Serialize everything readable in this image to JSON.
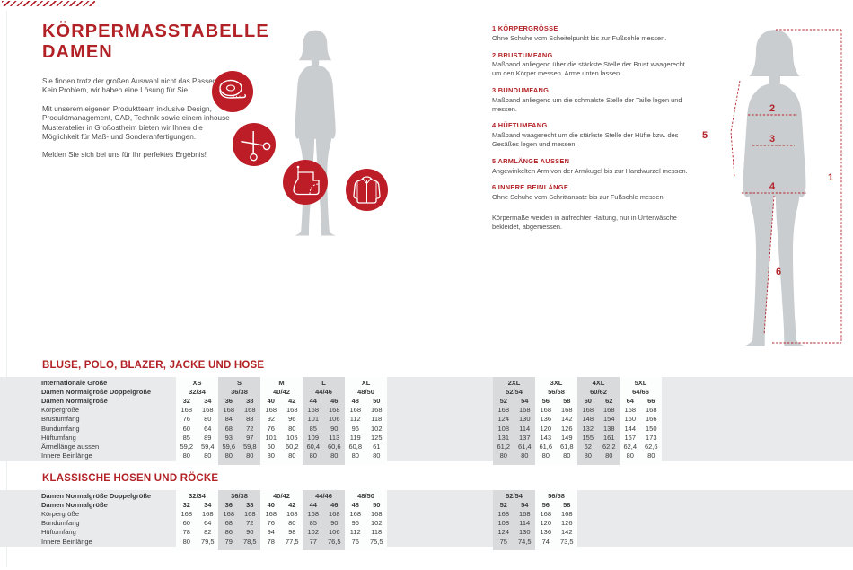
{
  "colors": {
    "accent_red": "#b22126",
    "badge_red": "#bc1d26",
    "silhouette_gray": "#c9cdd0",
    "table_band_gray": "#e9eaec",
    "table_shaded_gray": "#d8dadc"
  },
  "header": {
    "title_line1": "KÖRPERMASSTABELLE",
    "title_line2": "DAMEN"
  },
  "intro": {
    "paragraphs": [
      "Sie finden trotz der großen Auswahl nicht das Passende? Kein Problem, wir haben eine Lösung für Sie.",
      "Mit unserem eigenen Produktteam inklusive Design, Produktmanagement, CAD, Technik sowie einem inhouse Musteratelier in Großostheim bieten wir Ihnen die Möglichkeit für Maß- und Sonderanfertigungen.",
      "Melden Sie sich bei uns für Ihr perfektes Ergebnis!"
    ]
  },
  "icons": [
    "tape-measure",
    "scissors",
    "sewing-pattern",
    "jacket"
  ],
  "measure_guide": {
    "items": [
      {
        "title": "1 KÖRPERGRÖSSE",
        "text": "Ohne Schuhe vom Scheitelpunkt bis zur Fußsohle messen."
      },
      {
        "title": "2 BRUSTUMFANG",
        "text": "Maßband anliegend über die stärkste Stelle der Brust waagerecht um den Körper messen. Arme unten lassen."
      },
      {
        "title": "3 BUNDUMFANG",
        "text": "Maßband anliegend um die schmalste Stelle der Taille legen und messen."
      },
      {
        "title": "4 HÜFTUMFANG",
        "text": "Maßband waagerecht um die stärkste Stelle der Hüfte bzw. des Gesäßes legen und messen."
      },
      {
        "title": "5 ARMLÄNGE AUSSEN",
        "text": "Angewinkelten Arm von der Armkugel bis zur Handwurzel messen."
      },
      {
        "title": "6 INNERE BEINLÄNGE",
        "text": "Ohne Schuhe vom Schrittansatz bis zur Fußsohle messen."
      }
    ],
    "note": "Körpermaße werden in aufrechter Haltung, nur in Unterwäsche bekleidet, abgemessen."
  },
  "figure": {
    "numbers": [
      "1",
      "2",
      "3",
      "4",
      "5",
      "6"
    ]
  },
  "tables": [
    {
      "title": "BLUSE, POLO, BLAZER, JACKE UND HOSE",
      "label_rows": [
        {
          "label": "Internationale Größe",
          "type": "group",
          "bold": true,
          "values": [
            "XS",
            "S",
            "M",
            "L",
            "XL",
            "2XL",
            "3XL",
            "4XL",
            "5XL"
          ]
        },
        {
          "label": "Damen Normalgröße Doppelgröße",
          "type": "group",
          "bold": true,
          "values": [
            "32/34",
            "36/38",
            "40/42",
            "44/46",
            "48/50",
            "52/54",
            "56/58",
            "60/62",
            "64/66"
          ]
        },
        {
          "label": "Damen Normalgröße",
          "type": "cols",
          "bold": true,
          "values": [
            "32",
            "34",
            "36",
            "38",
            "40",
            "42",
            "44",
            "46",
            "48",
            "50",
            "52",
            "54",
            "56",
            "58",
            "60",
            "62",
            "64",
            "66"
          ]
        },
        {
          "label": "Körpergröße",
          "type": "cols",
          "bold": false,
          "values": [
            "168",
            "168",
            "168",
            "168",
            "168",
            "168",
            "168",
            "168",
            "168",
            "168",
            "168",
            "168",
            "168",
            "168",
            "168",
            "168",
            "168",
            "168"
          ]
        },
        {
          "label": "Brustumfang",
          "type": "cols",
          "bold": false,
          "values": [
            "76",
            "80",
            "84",
            "88",
            "92",
            "96",
            "101",
            "106",
            "112",
            "118",
            "124",
            "130",
            "136",
            "142",
            "148",
            "154",
            "160",
            "166"
          ]
        },
        {
          "label": "Bundumfang",
          "type": "cols",
          "bold": false,
          "values": [
            "60",
            "64",
            "68",
            "72",
            "76",
            "80",
            "85",
            "90",
            "96",
            "102",
            "108",
            "114",
            "120",
            "126",
            "132",
            "138",
            "144",
            "150"
          ]
        },
        {
          "label": "Hüftumfang",
          "type": "cols",
          "bold": false,
          "values": [
            "85",
            "89",
            "93",
            "97",
            "101",
            "105",
            "109",
            "113",
            "119",
            "125",
            "131",
            "137",
            "143",
            "149",
            "155",
            "161",
            "167",
            "173"
          ]
        },
        {
          "label": "Ärmellänge aussen",
          "type": "cols",
          "bold": false,
          "values": [
            "59,2",
            "59,4",
            "59,6",
            "59,8",
            "60",
            "60,2",
            "60,4",
            "60,6",
            "60,8",
            "61",
            "61,2",
            "61,4",
            "61,6",
            "61,8",
            "62",
            "62,2",
            "62,4",
            "62,6"
          ]
        },
        {
          "label": "Innere Beinlänge",
          "type": "cols",
          "bold": false,
          "values": [
            "80",
            "80",
            "80",
            "80",
            "80",
            "80",
            "80",
            "80",
            "80",
            "80",
            "80",
            "80",
            "80",
            "80",
            "80",
            "80",
            "80",
            "80"
          ]
        }
      ]
    },
    {
      "title": "KLASSISCHE HOSEN UND RÖCKE",
      "label_rows": [
        {
          "label": "Damen Normalgröße Doppelgröße",
          "type": "group",
          "bold": true,
          "values": [
            "32/34",
            "36/38",
            "40/42",
            "44/46",
            "48/50",
            "52/54",
            "56/58"
          ]
        },
        {
          "label": "Damen Normalgröße",
          "type": "cols",
          "bold": true,
          "values": [
            "32",
            "34",
            "36",
            "38",
            "40",
            "42",
            "44",
            "46",
            "48",
            "50",
            "52",
            "54",
            "56",
            "58"
          ]
        },
        {
          "label": "Körpergröße",
          "type": "cols",
          "bold": false,
          "values": [
            "168",
            "168",
            "168",
            "168",
            "168",
            "168",
            "168",
            "168",
            "168",
            "168",
            "168",
            "168",
            "168",
            "168"
          ]
        },
        {
          "label": "Bundumfang",
          "type": "cols",
          "bold": false,
          "values": [
            "60",
            "64",
            "68",
            "72",
            "76",
            "80",
            "85",
            "90",
            "96",
            "102",
            "108",
            "114",
            "120",
            "126"
          ]
        },
        {
          "label": "Hüftumfang",
          "type": "cols",
          "bold": false,
          "values": [
            "78",
            "82",
            "86",
            "90",
            "94",
            "98",
            "102",
            "106",
            "112",
            "118",
            "124",
            "130",
            "136",
            "142"
          ]
        },
        {
          "label": "Innere Beinlänge",
          "type": "cols",
          "bold": false,
          "values": [
            "80",
            "79,5",
            "79",
            "78,5",
            "78",
            "77,5",
            "77",
            "76,5",
            "76",
            "75,5",
            "75",
            "74,5",
            "74",
            "73,5"
          ]
        }
      ]
    }
  ]
}
